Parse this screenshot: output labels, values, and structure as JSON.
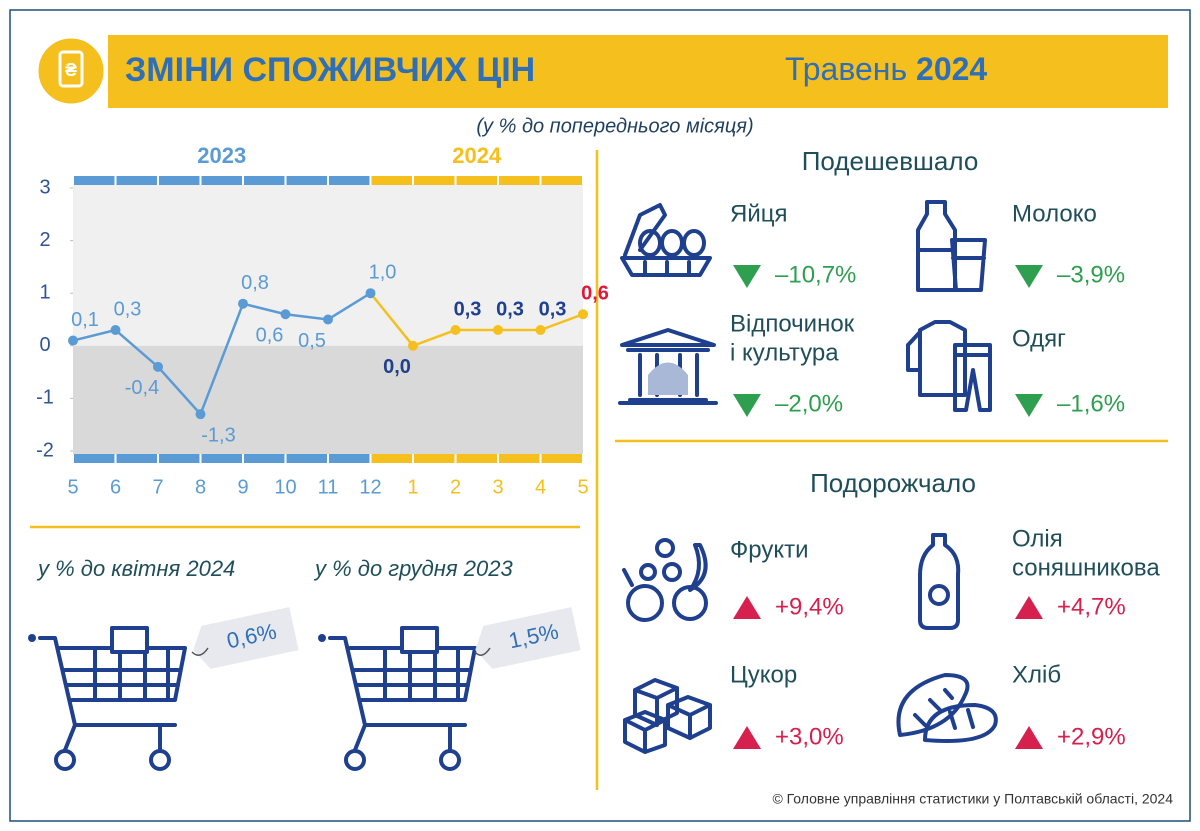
{
  "header": {
    "title": "ЗМІНИ СПОЖИВЧИХ ЦІН",
    "period_month": "Травень",
    "period_year": "2024"
  },
  "chart_data": {
    "type": "line",
    "subtitle": "(у % до попереднього місяця)",
    "ylim": [
      -2,
      3
    ],
    "yticks": [
      3,
      2,
      1,
      0,
      -1,
      -2
    ],
    "series": [
      {
        "name": "2023",
        "color": "#5b9bd5",
        "value_label_colors": [
          "#5b9bd5",
          "#5b9bd5",
          "#5b9bd5",
          "#5b9bd5",
          "#5b9bd5",
          "#5b9bd5",
          "#5b9bd5",
          "#5b9bd5"
        ],
        "categories": [
          "5",
          "6",
          "7",
          "8",
          "9",
          "10",
          "11",
          "12"
        ],
        "values": [
          0.1,
          0.3,
          -0.4,
          -1.3,
          0.8,
          0.6,
          0.5,
          1.0
        ],
        "value_labels": [
          "0,1",
          "0,3",
          "-0,4",
          "-1,3",
          "0,8",
          "0,6",
          "0,5",
          "1,0"
        ]
      },
      {
        "name": "2024",
        "color": "#f5bf1d",
        "value_label_colors": [
          "#1f3f8f",
          "#1f3f8f",
          "#1f3f8f",
          "#1f3f8f",
          "#e0193a"
        ],
        "categories": [
          "1",
          "2",
          "3",
          "4",
          "5"
        ],
        "values": [
          0.0,
          0.3,
          0.3,
          0.3,
          0.6
        ],
        "value_labels": [
          "0,0",
          "0,3",
          "0,3",
          "0,3",
          "0,6"
        ]
      }
    ]
  },
  "summary": [
    {
      "label": "у % до квітня 2024",
      "value": "0,6%"
    },
    {
      "label": "у % до грудня 2023",
      "value": "1,5%"
    }
  ],
  "cheaper": {
    "title": "Подешевшало",
    "items": [
      {
        "name": [
          "Яйця"
        ],
        "change": "–10,7%"
      },
      {
        "name": [
          "Молоко"
        ],
        "change": "–3,9%"
      },
      {
        "name": [
          "Відпочинок",
          "і культура"
        ],
        "change": "–2,0%"
      },
      {
        "name": [
          "Одяг"
        ],
        "change": "–1,6%"
      }
    ]
  },
  "pricier": {
    "title": "Подорожчало",
    "items": [
      {
        "name": [
          "Фрукти"
        ],
        "change": "+9,4%"
      },
      {
        "name": [
          "Олія",
          "соняшникова"
        ],
        "change": "+4,7%"
      },
      {
        "name": [
          "Цукор"
        ],
        "change": "+3,0%"
      },
      {
        "name": [
          "Хліб"
        ],
        "change": "+2,9%"
      }
    ]
  },
  "footer": "© Головне управління статистики у Полтавській області, 2024"
}
